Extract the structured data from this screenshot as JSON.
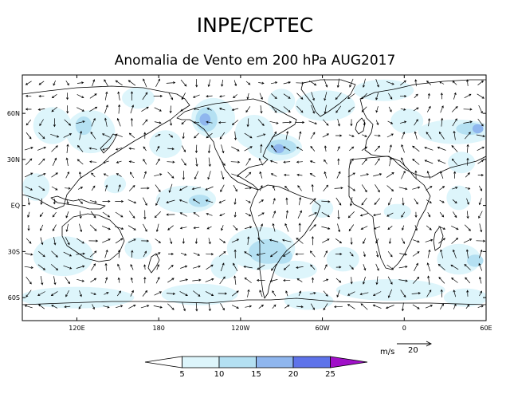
{
  "header": {
    "title": "INPE/CPTEC",
    "subtitle": "Anomalia de Vento em 200 hPa AUG2017"
  },
  "map": {
    "lon_range": [
      80,
      420
    ],
    "lat_range": [
      -75,
      85
    ],
    "lat_ticks": [
      {
        "value": 60,
        "label": "60N"
      },
      {
        "value": 30,
        "label": "30N"
      },
      {
        "value": 0,
        "label": "EQ"
      },
      {
        "value": -30,
        "label": "30S"
      },
      {
        "value": -60,
        "label": "60S"
      }
    ],
    "lon_ticks": [
      {
        "value": 120,
        "label": "120E"
      },
      {
        "value": 180,
        "label": "180"
      },
      {
        "value": 240,
        "label": "120W"
      },
      {
        "value": 300,
        "label": "60W"
      },
      {
        "value": 360,
        "label": "0"
      },
      {
        "value": 420,
        "label": "60E"
      }
    ],
    "coastline_color": "#000000",
    "vector_color": "#000000"
  },
  "colorbar": {
    "unit": "m/s",
    "levels": [
      "5",
      "10",
      "15",
      "20",
      "25"
    ],
    "colors": [
      "#ffffff",
      "#ddf5fb",
      "#b4e0f2",
      "#8fb6ee",
      "#5e73ea",
      "#a010c8"
    ]
  },
  "reference_vector": {
    "units": "m/s",
    "value": "20"
  },
  "wind_anomaly_regions": [
    {
      "lon": 102,
      "lat": 52,
      "rx": 14,
      "ry": 12,
      "level": 1
    },
    {
      "lon": 130,
      "lat": 48,
      "rx": 18,
      "ry": 14,
      "level": 1
    },
    {
      "lon": 125,
      "lat": 52,
      "rx": 6,
      "ry": 6,
      "level": 2
    },
    {
      "lon": 165,
      "lat": 70,
      "rx": 12,
      "ry": 7,
      "level": 1
    },
    {
      "lon": 185,
      "lat": 40,
      "rx": 12,
      "ry": 9,
      "level": 1
    },
    {
      "lon": 220,
      "lat": 57,
      "rx": 16,
      "ry": 13,
      "level": 1
    },
    {
      "lon": 215,
      "lat": 56,
      "rx": 8,
      "ry": 8,
      "level": 2
    },
    {
      "lon": 214,
      "lat": 56,
      "rx": 4,
      "ry": 4,
      "level": 3
    },
    {
      "lon": 250,
      "lat": 48,
      "rx": 14,
      "ry": 11,
      "level": 1
    },
    {
      "lon": 265,
      "lat": 38,
      "rx": 20,
      "ry": 9,
      "level": 1
    },
    {
      "lon": 270,
      "lat": 38,
      "rx": 11,
      "ry": 5,
      "level": 2
    },
    {
      "lon": 268,
      "lat": 37,
      "rx": 4,
      "ry": 3,
      "level": 3
    },
    {
      "lon": 270,
      "lat": 68,
      "rx": 10,
      "ry": 8,
      "level": 1
    },
    {
      "lon": 302,
      "lat": 65,
      "rx": 22,
      "ry": 10,
      "level": 1
    },
    {
      "lon": 345,
      "lat": 75,
      "rx": 22,
      "ry": 7,
      "level": 1
    },
    {
      "lon": 362,
      "lat": 55,
      "rx": 12,
      "ry": 8,
      "level": 1
    },
    {
      "lon": 398,
      "lat": 48,
      "rx": 28,
      "ry": 8,
      "level": 1
    },
    {
      "lon": 408,
      "lat": 50,
      "rx": 10,
      "ry": 4,
      "level": 2
    },
    {
      "lon": 414,
      "lat": 50,
      "rx": 4,
      "ry": 3,
      "level": 3
    },
    {
      "lon": 402,
      "lat": 28,
      "rx": 10,
      "ry": 7,
      "level": 1
    },
    {
      "lon": 200,
      "lat": 4,
      "rx": 22,
      "ry": 9,
      "level": 1
    },
    {
      "lon": 210,
      "lat": 3,
      "rx": 8,
      "ry": 4,
      "level": 2
    },
    {
      "lon": 90,
      "lat": 12,
      "rx": 10,
      "ry": 9,
      "level": 1
    },
    {
      "lon": 148,
      "lat": 14,
      "rx": 8,
      "ry": 6,
      "level": 1
    },
    {
      "lon": 300,
      "lat": -2,
      "rx": 8,
      "ry": 6,
      "level": 1
    },
    {
      "lon": 355,
      "lat": -4,
      "rx": 10,
      "ry": 5,
      "level": 1
    },
    {
      "lon": 400,
      "lat": 5,
      "rx": 9,
      "ry": 8,
      "level": 1
    },
    {
      "lon": 110,
      "lat": -33,
      "rx": 22,
      "ry": 13,
      "level": 1
    },
    {
      "lon": 165,
      "lat": -28,
      "rx": 10,
      "ry": 7,
      "level": 1
    },
    {
      "lon": 255,
      "lat": -28,
      "rx": 25,
      "ry": 14,
      "level": 1
    },
    {
      "lon": 260,
      "lat": -30,
      "rx": 14,
      "ry": 8,
      "level": 2
    },
    {
      "lon": 270,
      "lat": -33,
      "rx": 8,
      "ry": 5,
      "level": 2
    },
    {
      "lon": 280,
      "lat": -42,
      "rx": 16,
      "ry": 6,
      "level": 1
    },
    {
      "lon": 228,
      "lat": -40,
      "rx": 10,
      "ry": 8,
      "level": 1
    },
    {
      "lon": 315,
      "lat": -35,
      "rx": 12,
      "ry": 8,
      "level": 1
    },
    {
      "lon": 400,
      "lat": -35,
      "rx": 16,
      "ry": 10,
      "level": 1
    },
    {
      "lon": 412,
      "lat": -36,
      "rx": 6,
      "ry": 4,
      "level": 2
    },
    {
      "lon": 350,
      "lat": -55,
      "rx": 40,
      "ry": 7,
      "level": 1
    },
    {
      "lon": 120,
      "lat": -60,
      "rx": 42,
      "ry": 7,
      "level": 1
    },
    {
      "lon": 210,
      "lat": -58,
      "rx": 28,
      "ry": 7,
      "level": 1
    },
    {
      "lon": 290,
      "lat": -62,
      "rx": 18,
      "ry": 6,
      "level": 1
    },
    {
      "lon": 405,
      "lat": -60,
      "rx": 16,
      "ry": 6,
      "level": 1
    }
  ]
}
